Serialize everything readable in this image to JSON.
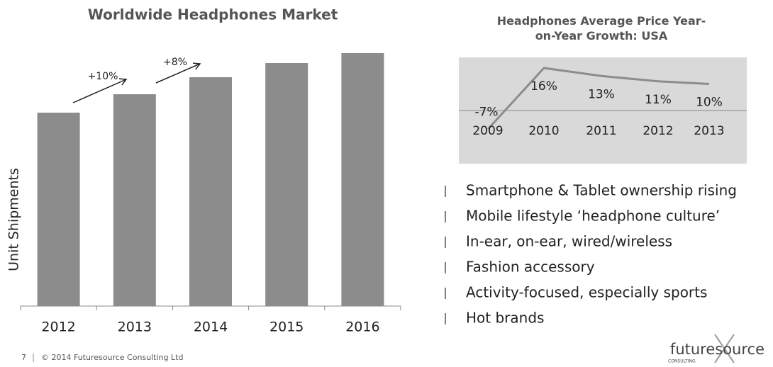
{
  "chart_data": [
    {
      "type": "bar",
      "title": "Worldwide Headphones Market",
      "y_label": "Unit Shipments",
      "categories": [
        "2012",
        "2013",
        "2014",
        "2015",
        "2016"
      ],
      "values": [
        273,
        299,
        323,
        343,
        357
      ],
      "color": "#8c8c8c",
      "ylim": [
        0,
        360
      ],
      "annotations": [
        "+10%",
        "+8%"
      ]
    },
    {
      "type": "line",
      "title": "Headphones Average Price Year-on-Year Growth: USA",
      "categories": [
        "2009",
        "2010",
        "2011",
        "2012",
        "2013"
      ],
      "values": [
        -7,
        16,
        13,
        11,
        10
      ],
      "value_labels": [
        "-7%",
        "16%",
        "13%",
        "11%",
        "10%"
      ],
      "color": "#8c8c8c",
      "ylim": [
        -20,
        20
      ]
    }
  ],
  "bullets": [
    "Smartphone & Tablet ownership rising",
    "Mobile lifestyle ‘headphone culture’",
    "In-ear, on-ear, wired/wireless",
    "Fashion accessory",
    "Activity-focused, especially sports",
    "Hot brands"
  ],
  "footer": {
    "page": "7",
    "copyright": "© 2014 Futuresource Consulting Ltd"
  },
  "logo": {
    "name": "futuresource",
    "tagline": "CONSULTING"
  }
}
